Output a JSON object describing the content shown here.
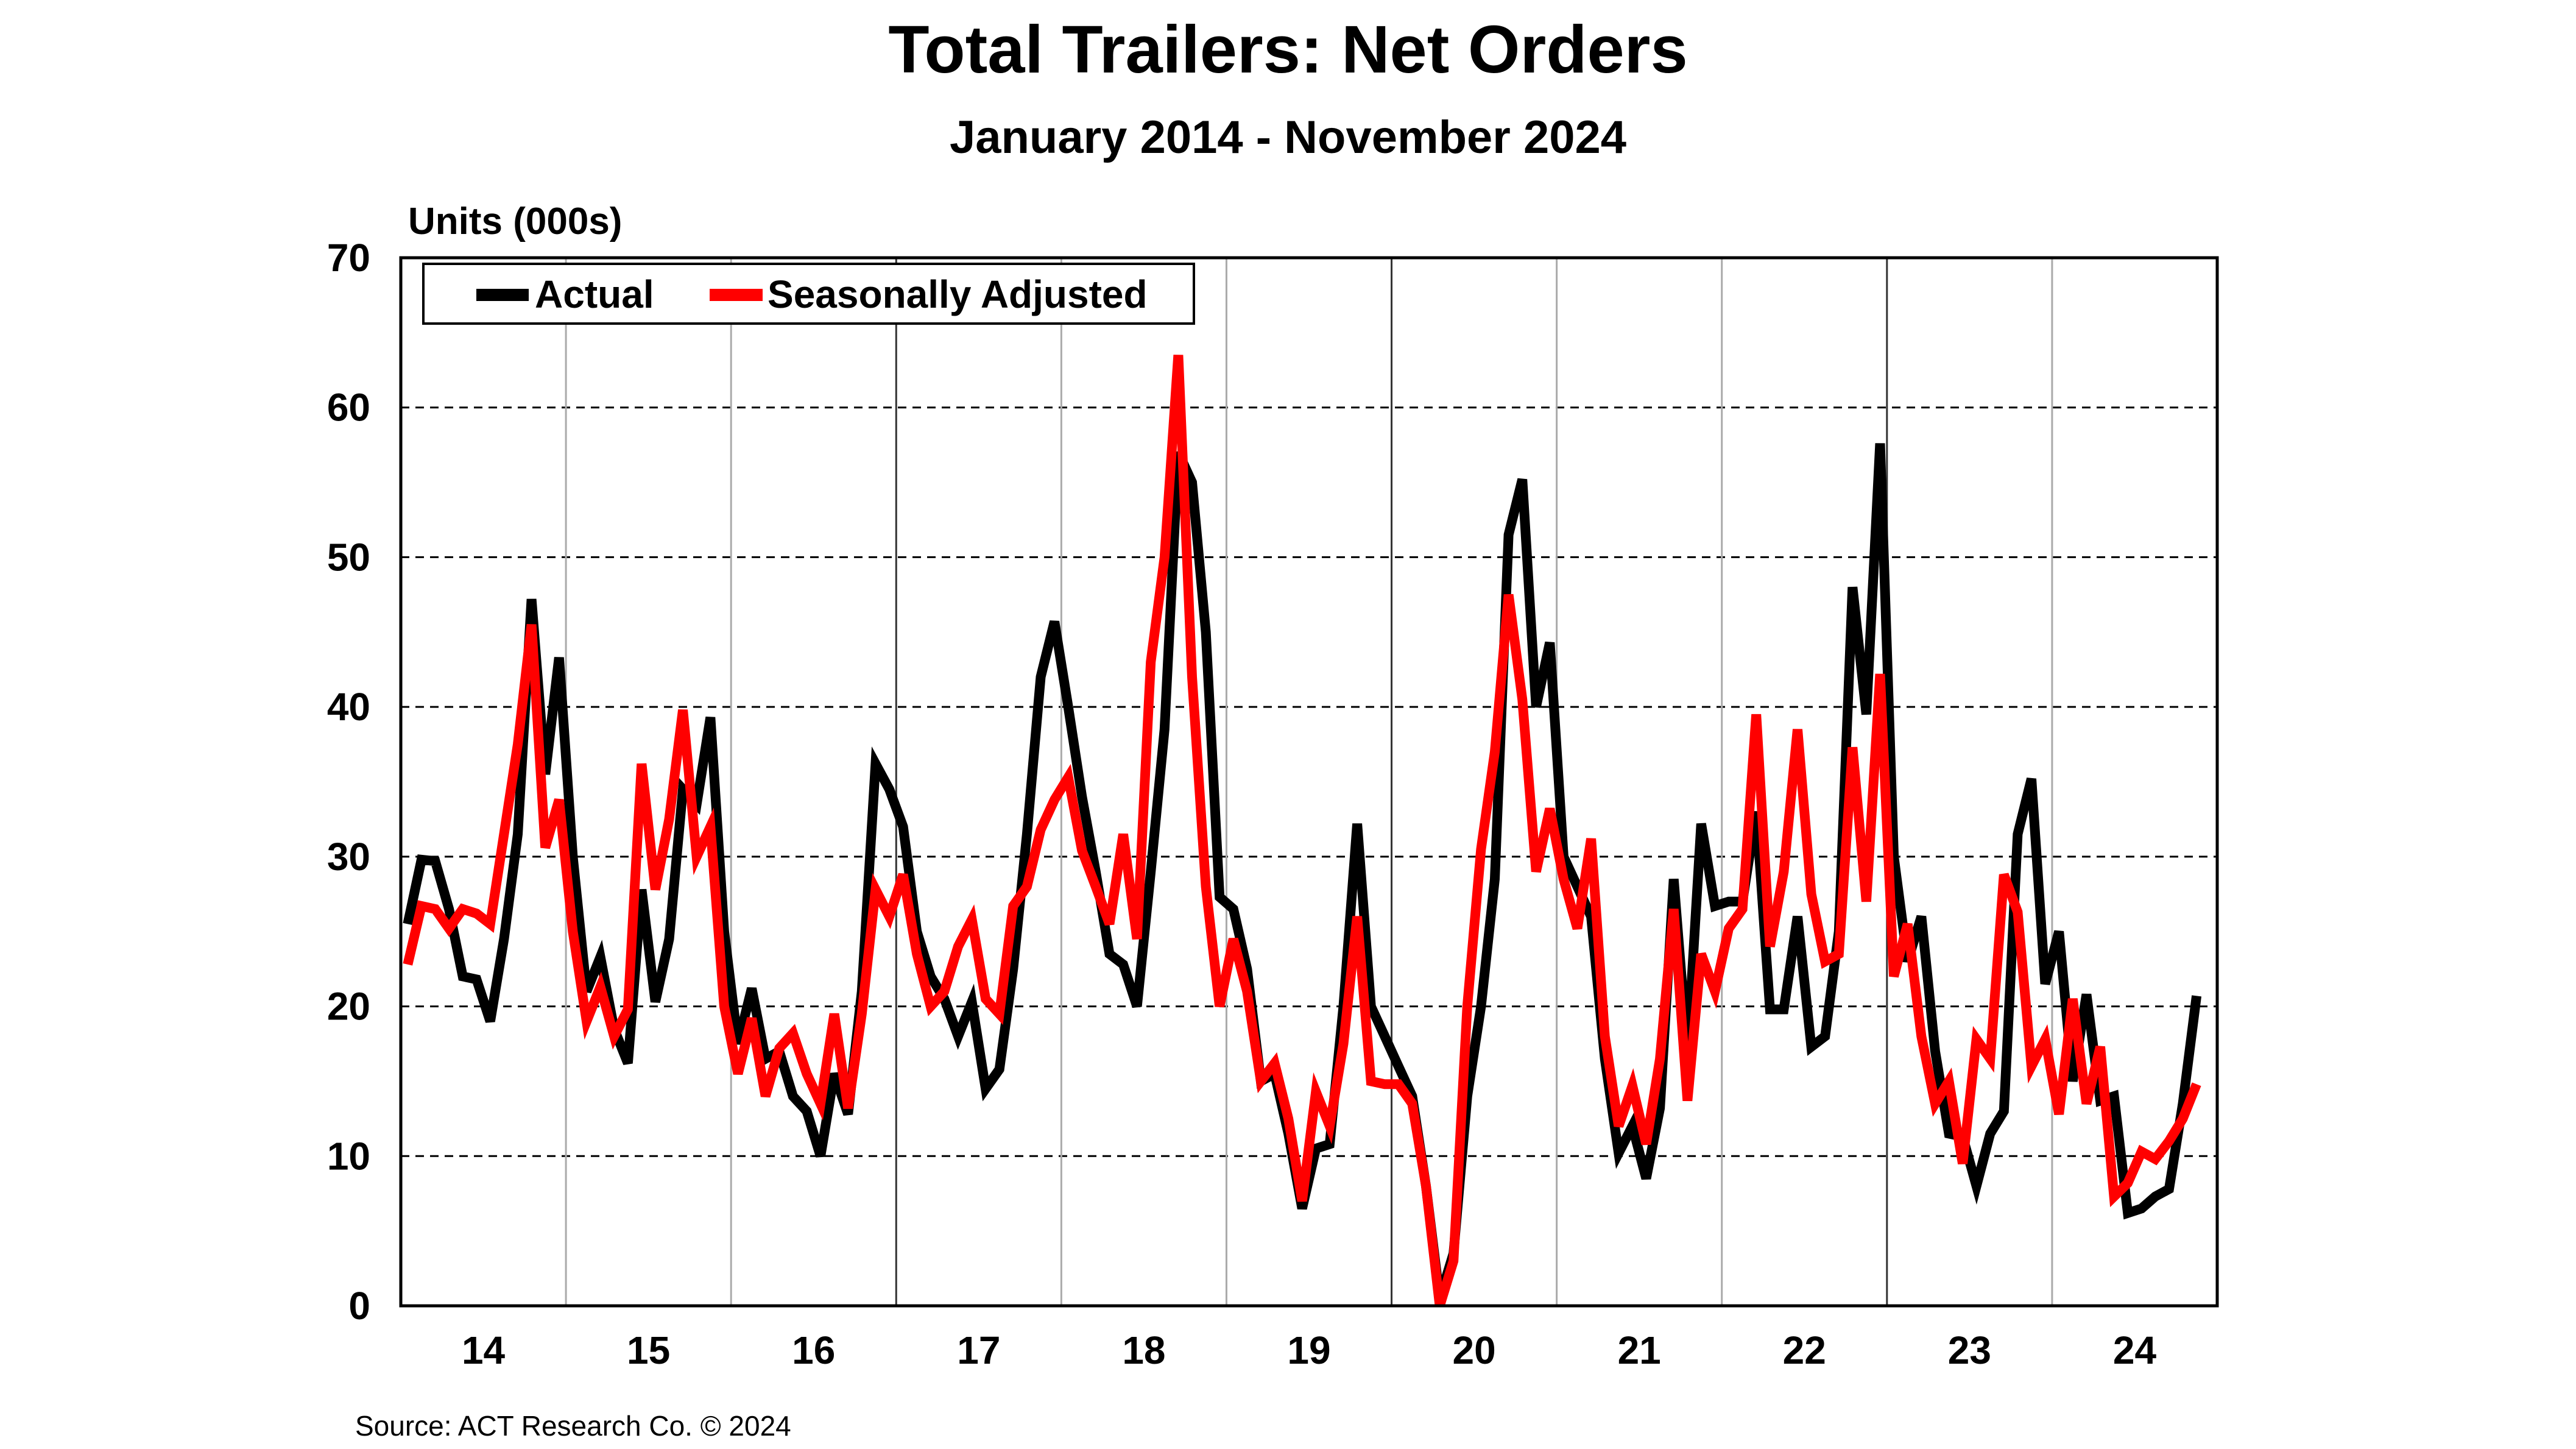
{
  "chart": {
    "title": "Total Trailers: Net Orders",
    "subtitle": "January 2014 - November 2024",
    "ylabel": "Units (000s)",
    "source": "Source: ACT Research Co. © 2024",
    "legend": {
      "actual": "Actual",
      "sa": "Seasonally Adjusted"
    },
    "colors": {
      "actual": "#000000",
      "sa": "#ff0000"
    }
  },
  "chart_data": {
    "type": "line",
    "title": "Total Trailers: Net Orders",
    "subtitle": "January 2014 - November 2024",
    "xlabel": "",
    "ylabel": "Units (000s)",
    "ylim": [
      0,
      70
    ],
    "yticks": [
      0,
      10,
      20,
      30,
      40,
      50,
      60,
      70
    ],
    "xtick_labels": [
      "14",
      "15",
      "16",
      "17",
      "18",
      "19",
      "20",
      "21",
      "22",
      "23",
      "24"
    ],
    "grid": {
      "horizontal": "dashed",
      "vertical": "solid-gray-yearly"
    },
    "legend_position": "top-left inside",
    "x_start": "2014-01",
    "x_end": "2024-11",
    "series": [
      {
        "name": "Actual",
        "color": "#000000",
        "values": [
          25.5,
          29.8,
          29.7,
          26.5,
          22,
          21.8,
          19,
          24.5,
          31.5,
          47.2,
          35.5,
          43.3,
          30,
          21,
          23.3,
          18.5,
          16.2,
          27.8,
          20.3,
          24.5,
          34.5,
          33.5,
          39.3,
          25,
          17.5,
          21.2,
          16.5,
          17,
          14,
          13,
          10,
          15.5,
          12.8,
          21,
          36.2,
          34.5,
          32,
          25,
          22,
          20.5,
          18,
          20.3,
          14.5,
          15.8,
          22.5,
          31.5,
          42,
          45.7,
          40,
          34,
          29,
          23.5,
          22.8,
          20,
          29,
          38.5,
          57,
          55,
          45,
          27.3,
          26.5,
          22.5,
          15,
          15.5,
          11.5,
          6.5,
          10.5,
          10.8,
          20,
          32.2,
          20,
          18,
          16,
          14,
          8,
          0.5,
          3.5,
          14,
          20,
          28.5,
          51.5,
          55.2,
          40,
          44.3,
          30,
          28,
          26,
          16.5,
          10.2,
          12,
          8.5,
          13.2,
          28.5,
          17,
          32.2,
          26.7,
          27,
          27,
          33,
          19.8,
          19.8,
          26,
          17.3,
          18,
          25,
          48,
          39.5,
          57.6,
          30,
          23,
          26,
          17,
          11.5,
          11.3,
          8,
          11.5,
          13,
          31.5,
          35.2,
          21.5,
          25,
          15,
          20.8,
          13.7,
          14,
          6.2,
          6.5,
          7.3,
          7.8,
          13.5,
          20.7
        ]
      },
      {
        "name": "Seasonally Adjusted",
        "color": "#ff0000",
        "values": [
          22.8,
          26.7,
          26.5,
          25.2,
          26.5,
          26.2,
          25.5,
          31.5,
          37.5,
          45.5,
          30.6,
          33.8,
          25,
          19,
          21.3,
          18,
          19.8,
          36.2,
          27.8,
          32.5,
          39.8,
          30,
          32,
          20,
          15.5,
          19.2,
          14,
          17.2,
          18.2,
          15.5,
          13.5,
          19.5,
          13.2,
          19.5,
          27.8,
          26,
          28.8,
          23.5,
          20,
          21,
          24,
          25.8,
          20.5,
          19.5,
          26.7,
          28,
          31.8,
          33.8,
          35.3,
          30.4,
          28,
          25.5,
          31.5,
          24.5,
          43,
          50,
          63.5,
          42,
          28,
          20,
          24.5,
          21,
          15,
          16.2,
          12.5,
          7,
          14.3,
          12,
          17.5,
          26,
          15,
          14.8,
          14.8,
          13.5,
          8,
          0,
          3,
          20,
          30.5,
          37,
          47.5,
          40.5,
          29,
          33.2,
          28.5,
          25.2,
          31.2,
          18,
          12,
          14.7,
          10.8,
          16.5,
          26.5,
          13.7,
          23.5,
          21,
          25.2,
          26.5,
          39.5,
          24,
          29,
          38.5,
          27.5,
          23,
          23.5,
          37.3,
          27,
          42.2,
          22,
          25.5,
          18,
          13.5,
          15,
          9.5,
          17.8,
          16.5,
          28.8,
          26.3,
          16,
          17.8,
          12.8,
          20.5,
          13.5,
          17.3,
          7.3,
          8.2,
          10.3,
          9.8,
          11,
          12.5,
          14.8
        ]
      }
    ]
  }
}
